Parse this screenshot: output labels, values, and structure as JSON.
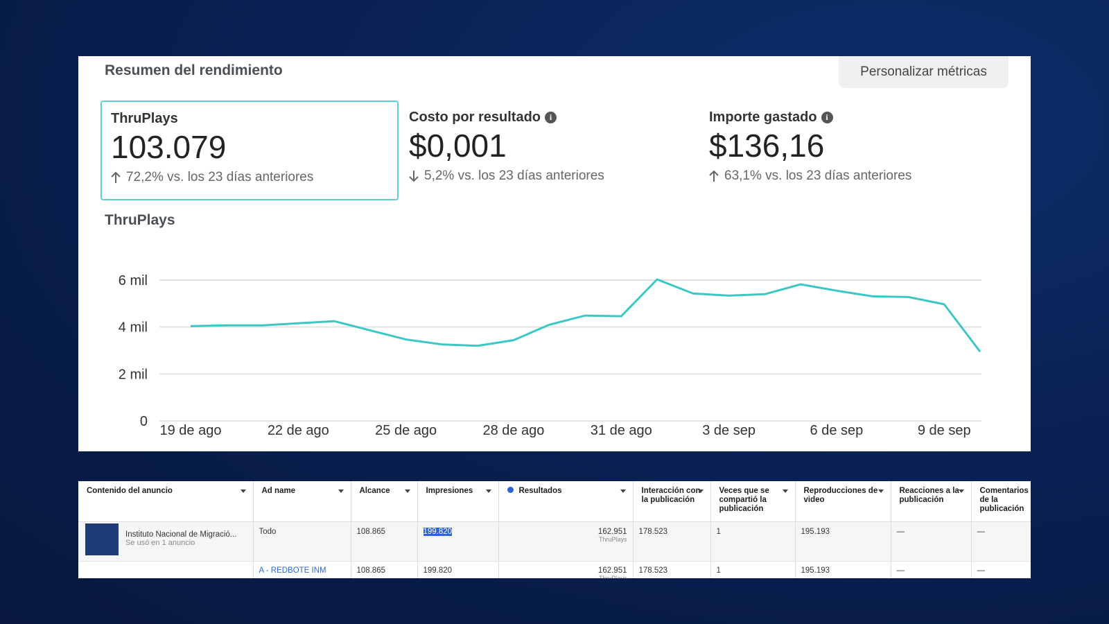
{
  "header": {
    "title": "Resumen del rendimiento",
    "button": "Personalizar métricas"
  },
  "metrics": [
    {
      "label": "ThruPlays",
      "value": "103.079",
      "change": "72,2% vs. los 23 días anteriores",
      "trend": "up",
      "info": false,
      "selected": true
    },
    {
      "label": "Costo por resultado",
      "value": "$0,001",
      "change": "5,2% vs. los 23 días anteriores",
      "trend": "down",
      "info": true,
      "selected": false
    },
    {
      "label": "Importe gastado",
      "value": "$136,16",
      "change": "63,1% vs. los 23 días anteriores",
      "trend": "up",
      "info": true,
      "selected": false
    }
  ],
  "chart_data": {
    "type": "line",
    "title": "ThruPlays",
    "categories": [
      "19 de ago",
      null,
      null,
      "22 de ago",
      null,
      null,
      "25 de ago",
      null,
      null,
      "28 de ago",
      null,
      null,
      "31 de ago",
      null,
      null,
      "3 de sep",
      null,
      null,
      "6 de sep",
      null,
      null,
      "9 de sep",
      null
    ],
    "series": [
      {
        "name": "ThruPlays",
        "color": "#3cc6c6",
        "values": [
          4040,
          4070,
          4070,
          4160,
          4250,
          3860,
          3470,
          3260,
          3200,
          3440,
          4100,
          4490,
          4460,
          6030,
          5430,
          5340,
          5400,
          5820,
          5550,
          5310,
          5280,
          4970,
          2950
        ]
      }
    ],
    "ylim": [
      0,
      6000
    ],
    "yticks": [
      0,
      {
        "value": 2000,
        "label": "2 mil"
      },
      {
        "value": 4000,
        "label": "4 mil"
      },
      {
        "value": 6000,
        "label": "6 mil"
      }
    ],
    "grid": true
  },
  "table": {
    "columns": [
      "Contenido del anuncio",
      "Ad name",
      "Alcance",
      "Impresiones",
      "Resultados",
      "Interacción con la publicación",
      "Veces que se compartió la publicación",
      "Reproducciones de video",
      "Reacciones a la publicación",
      "Comentarios de la publicación"
    ],
    "rows": [
      {
        "ad_title": "Instituto Nacional de Migració...",
        "ad_subtitle": "Se usó en 1 anuncio",
        "cells": [
          "Todo",
          "108.865",
          "199.820",
          "162.951",
          "178.523",
          "1",
          "195.193",
          "—",
          "—"
        ],
        "result_unit": "ThruPlays"
      },
      {
        "cells": [
          "A - REDBOTE INM",
          "108.865",
          "199.820",
          "162.951",
          "178.523",
          "1",
          "195.193",
          "—",
          "—"
        ],
        "result_unit": "ThruPlays"
      }
    ]
  }
}
